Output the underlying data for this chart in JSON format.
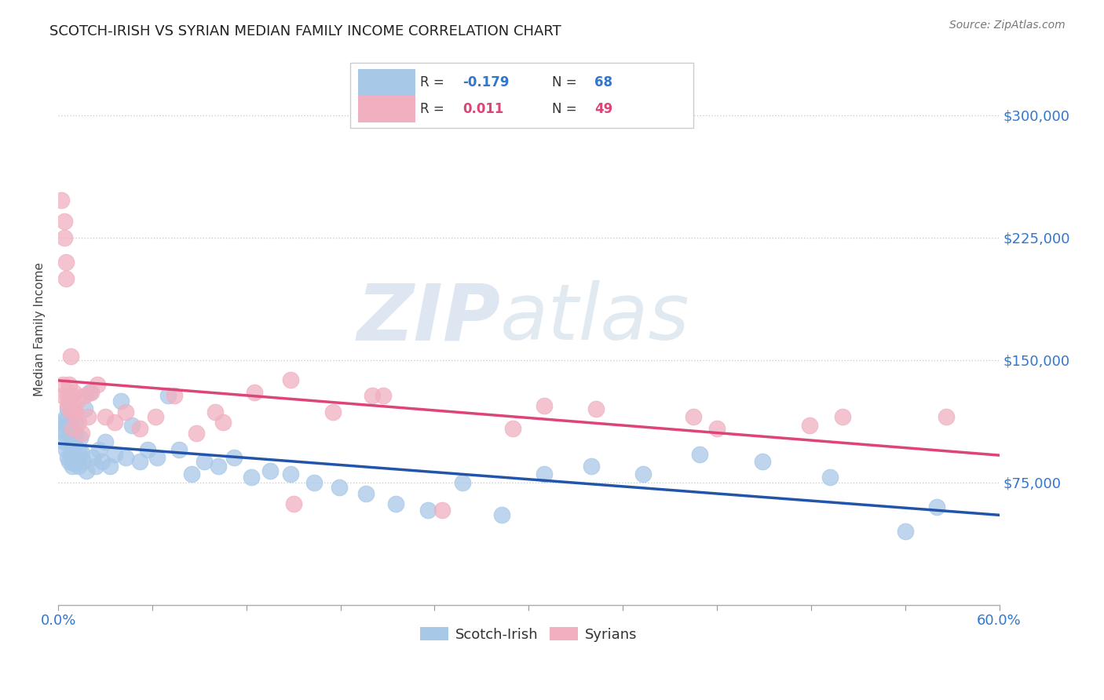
{
  "title": "SCOTCH-IRISH VS SYRIAN MEDIAN FAMILY INCOME CORRELATION CHART",
  "source": "Source: ZipAtlas.com",
  "ylabel": "Median Family Income",
  "xlim": [
    0.0,
    0.6
  ],
  "ylim": [
    0,
    337500
  ],
  "ytick_values": [
    75000,
    150000,
    225000,
    300000
  ],
  "ytick_labels": [
    "$75,000",
    "$150,000",
    "$225,000",
    "$300,000"
  ],
  "watermark_zip": "ZIP",
  "watermark_atlas": "atlas",
  "legend_r_blue": "-0.179",
  "legend_n_blue": "68",
  "legend_r_pink": "0.011",
  "legend_n_pink": "49",
  "blue_color": "#a8c8e8",
  "pink_color": "#f0b0c0",
  "blue_line_color": "#2255aa",
  "pink_line_color": "#dd4477",
  "scotch_irish_x": [
    0.002,
    0.003,
    0.004,
    0.004,
    0.005,
    0.005,
    0.005,
    0.006,
    0.006,
    0.007,
    0.007,
    0.008,
    0.008,
    0.009,
    0.009,
    0.009,
    0.01,
    0.01,
    0.01,
    0.011,
    0.011,
    0.012,
    0.012,
    0.013,
    0.013,
    0.014,
    0.015,
    0.016,
    0.017,
    0.018,
    0.02,
    0.022,
    0.024,
    0.026,
    0.028,
    0.03,
    0.033,
    0.036,
    0.04,
    0.043,
    0.047,
    0.052,
    0.057,
    0.063,
    0.07,
    0.077,
    0.085,
    0.093,
    0.102,
    0.112,
    0.123,
    0.135,
    0.148,
    0.163,
    0.179,
    0.196,
    0.215,
    0.236,
    0.258,
    0.283,
    0.31,
    0.34,
    0.373,
    0.409,
    0.449,
    0.492,
    0.54,
    0.56
  ],
  "scotch_irish_y": [
    108000,
    112000,
    105000,
    100000,
    115000,
    95000,
    110000,
    90000,
    120000,
    88000,
    105000,
    108000,
    92000,
    98000,
    85000,
    110000,
    100000,
    87000,
    95000,
    105000,
    112000,
    90000,
    88000,
    95000,
    85000,
    102000,
    93000,
    88000,
    120000,
    82000,
    130000,
    90000,
    85000,
    95000,
    88000,
    100000,
    85000,
    92000,
    125000,
    90000,
    110000,
    88000,
    95000,
    90000,
    128000,
    95000,
    80000,
    88000,
    85000,
    90000,
    78000,
    82000,
    80000,
    75000,
    72000,
    68000,
    62000,
    58000,
    75000,
    55000,
    80000,
    85000,
    80000,
    92000,
    88000,
    78000,
    45000,
    60000
  ],
  "syrians_x": [
    0.002,
    0.003,
    0.003,
    0.004,
    0.004,
    0.005,
    0.005,
    0.006,
    0.006,
    0.007,
    0.007,
    0.008,
    0.008,
    0.009,
    0.009,
    0.01,
    0.01,
    0.011,
    0.012,
    0.013,
    0.015,
    0.017,
    0.019,
    0.021,
    0.025,
    0.03,
    0.036,
    0.043,
    0.052,
    0.062,
    0.074,
    0.088,
    0.105,
    0.125,
    0.148,
    0.175,
    0.207,
    0.245,
    0.29,
    0.343,
    0.405,
    0.479,
    0.566,
    0.1,
    0.15,
    0.2,
    0.31,
    0.42,
    0.5
  ],
  "syrians_y": [
    248000,
    128000,
    135000,
    235000,
    225000,
    210000,
    200000,
    128000,
    122000,
    135000,
    125000,
    152000,
    118000,
    128000,
    108000,
    130000,
    120000,
    118000,
    125000,
    112000,
    105000,
    128000,
    115000,
    130000,
    135000,
    115000,
    112000,
    118000,
    108000,
    115000,
    128000,
    105000,
    112000,
    130000,
    138000,
    118000,
    128000,
    58000,
    108000,
    120000,
    115000,
    110000,
    115000,
    118000,
    62000,
    128000,
    122000,
    108000,
    115000
  ]
}
